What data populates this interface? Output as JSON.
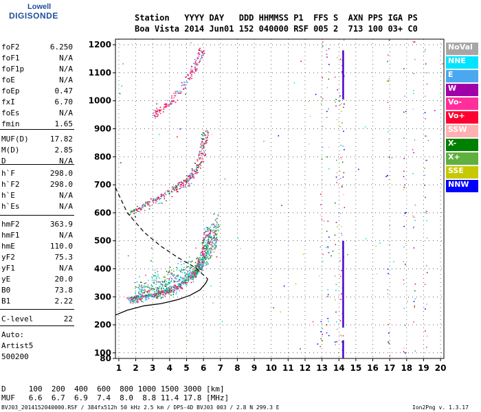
{
  "logo": {
    "line1": "Lowell",
    "line2": "DIGISONDE"
  },
  "header": {
    "columns": "Station   YYYY DAY   DDD HHMMSS P1  FFS S  AXN PPS IGA PS",
    "values": "Boa Vista 2014 Jun01 152 040000 RSF 005 2  713 100 03+ C0"
  },
  "params": [
    {
      "label": "foF2",
      "value": "6.250"
    },
    {
      "label": "foF1",
      "value": "N/A"
    },
    {
      "label": "foF1p",
      "value": "N/A"
    },
    {
      "label": "foE",
      "value": "N/A"
    },
    {
      "label": "foEp",
      "value": "0.47"
    },
    {
      "label": "fxI",
      "value": "6.70"
    },
    {
      "label": "foEs",
      "value": "N/A"
    },
    {
      "label": "fmin",
      "value": "1.65"
    },
    {
      "label": "MUF(D)",
      "value": "17.82"
    },
    {
      "label": "M(D)",
      "value": "2.85"
    },
    {
      "label": "D",
      "value": "N/A"
    },
    {
      "label": "h`F",
      "value": "298.0"
    },
    {
      "label": "h`F2",
      "value": "298.0"
    },
    {
      "label": "h`E",
      "value": "N/A"
    },
    {
      "label": "h`Es",
      "value": "N/A"
    },
    {
      "label": "hmF2",
      "value": "363.9"
    },
    {
      "label": "hmF1",
      "value": "N/A"
    },
    {
      "label": "hmE",
      "value": "110.0"
    },
    {
      "label": "yF2",
      "value": "75.3"
    },
    {
      "label": "yF1",
      "value": "N/A"
    },
    {
      "label": "yE",
      "value": "20.0"
    },
    {
      "label": "B0",
      "value": "73.8"
    },
    {
      "label": "B1",
      "value": "2.22"
    },
    {
      "label": "C-level",
      "value": "22"
    }
  ],
  "auto": {
    "line1": "Auto:",
    "line2": "Artist5",
    "line3": "500200"
  },
  "legend": [
    {
      "label": "NoVal",
      "color": "#a6a6a6"
    },
    {
      "label": "NNE",
      "color": "#00e5ff"
    },
    {
      "label": "E",
      "color": "#4aa8f0"
    },
    {
      "label": "W",
      "color": "#a000a8"
    },
    {
      "label": "Vo-",
      "color": "#ff2e9a"
    },
    {
      "label": "Vo+",
      "color": "#ff0030"
    },
    {
      "label": "SSW",
      "color": "#ffb0b0"
    },
    {
      "label": "X-",
      "color": "#008000"
    },
    {
      "label": "X+",
      "color": "#60b040"
    },
    {
      "label": "SSE",
      "color": "#c8c800"
    },
    {
      "label": "NNW",
      "color": "#0000ff"
    }
  ],
  "chart_data": {
    "type": "scatter",
    "xlabel": "",
    "ylabel": "",
    "xlim": [
      0.8,
      20.2
    ],
    "ylim": [
      80,
      1220
    ],
    "x_ticks": [
      1,
      2,
      3,
      4,
      5,
      6,
      7,
      8,
      9,
      10,
      11,
      12,
      13,
      14,
      15,
      16,
      17,
      18,
      19,
      20
    ],
    "y_ticks": [
      80,
      100,
      200,
      300,
      400,
      500,
      600,
      700,
      800,
      900,
      1000,
      1100,
      1200
    ],
    "grid": true,
    "traces": [
      {
        "name": "F2 O-trace",
        "x": [
          1.65,
          2.0,
          2.5,
          3.0,
          3.5,
          4.0,
          4.5,
          5.0,
          5.5,
          5.8,
          6.0,
          6.15,
          6.25
        ],
        "y": [
          298,
          300,
          305,
          312,
          320,
          330,
          345,
          365,
          392,
          420,
          460,
          510,
          560
        ]
      },
      {
        "name": "F2 2nd hop",
        "x": [
          1.6,
          2.2,
          3.0,
          3.8,
          4.5,
          5.0,
          5.5,
          5.9,
          6.0,
          6.1
        ],
        "y": [
          600,
          622,
          650,
          675,
          700,
          720,
          760,
          810,
          860,
          900
        ]
      },
      {
        "name": "F2 3rd hop",
        "x": [
          2.9,
          3.4,
          4.0,
          4.6,
          5.0,
          5.4,
          5.7,
          5.9
        ],
        "y": [
          950,
          975,
          1000,
          1040,
          1080,
          1120,
          1160,
          1190
        ]
      },
      {
        "name": "X-trace",
        "x": [
          2.0,
          2.6,
          3.2,
          3.8,
          4.4,
          5.0,
          5.5,
          6.0,
          6.4,
          6.6,
          6.7
        ],
        "y": [
          305,
          318,
          330,
          345,
          360,
          375,
          395,
          420,
          455,
          500,
          560
        ]
      }
    ],
    "profile": {
      "x": [
        0.8,
        1.5,
        2.5,
        3.5,
        4.5,
        5.2,
        5.8,
        6.15,
        6.25
      ],
      "y": [
        235,
        252,
        268,
        276,
        290,
        305,
        325,
        350,
        364
      ]
    },
    "topside": {
      "x": [
        0.8,
        1.5,
        2.5,
        3.5,
        4.5,
        5.5,
        6.25
      ],
      "y": [
        690,
        600,
        530,
        480,
        440,
        405,
        364
      ]
    },
    "interference_x": [
      12.95,
      13.3,
      13.8,
      14.1,
      14.2,
      16.9,
      17.85,
      18.4,
      19.1
    ],
    "band_x": 14.25,
    "band_segments": [
      {
        "y1": 1005,
        "y2": 1180
      },
      {
        "y1": 190,
        "y2": 500
      },
      {
        "y1": 80,
        "y2": 145
      }
    ]
  },
  "footer": {
    "line1": "D     100  200  400  600  800 1000 1500 3000 [km]",
    "line2": "MUF   6.6  6.7  6.9  7.4  8.0  8.8 11.4 17.8 [MHz]",
    "line3": "BVJ03_2014152040000.RSF / 384fx512h 50 kHz 2.5 km / DPS-4D BVJ03 003 / 2.8 N 299.3 E",
    "version": "Ion2Png v. 1.3.17"
  }
}
